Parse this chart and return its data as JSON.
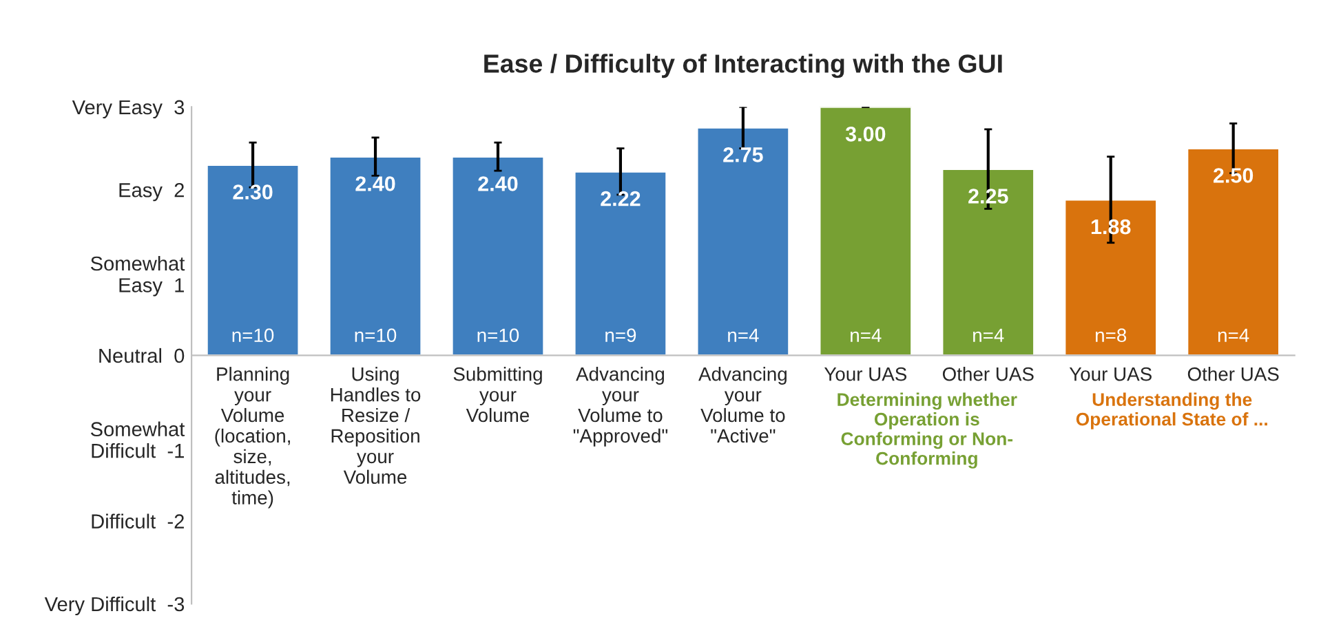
{
  "chart_data": {
    "type": "bar",
    "title": "Ease / Difficulty of Interacting with the GUI",
    "categories": [
      "Planning\nyour\nVolume\n(location,\nsize,\naltitudes,\ntime)",
      "Using\nHandles to\nResize /\nReposition\nyour\nVolume",
      "Submitting\nyour\nVolume",
      "Advancing\nyour\nVolume to\n\"Approved\"",
      "Advancing\nyour\nVolume to\n\"Active\"",
      "Your UAS",
      "Other UAS",
      "Your UAS",
      "Other UAS"
    ],
    "values": [
      2.3,
      2.4,
      2.4,
      2.22,
      2.75,
      3.0,
      2.25,
      1.88,
      2.5
    ],
    "value_labels": [
      "2.30",
      "2.40",
      "2.40",
      "2.22",
      "2.75",
      "3.00",
      "2.25",
      "1.88",
      "2.50"
    ],
    "colors": [
      "#3f7fbf",
      "#3f7fbf",
      "#3f7fbf",
      "#3f7fbf",
      "#3f7fbf",
      "#77a033",
      "#77a033",
      "#d9730d",
      "#d9730d"
    ],
    "errors": [
      0.27,
      0.23,
      0.17,
      0.28,
      0.25,
      0,
      0.48,
      0.52,
      0.3
    ],
    "ylim": [
      -3,
      3
    ],
    "yticks": [
      {
        "value": 3,
        "label": "Very Easy  3"
      },
      {
        "value": 2,
        "label": "Easy  2"
      },
      {
        "value": 1,
        "label": "Somewhat\nEasy  1"
      },
      {
        "value": 0,
        "label": "Neutral  0"
      },
      {
        "value": -1,
        "label": "Somewhat\nDifficult  -1"
      },
      {
        "value": -2,
        "label": "Difficult  -2"
      },
      {
        "value": -3,
        "label": "Very Difficult  -3"
      }
    ],
    "annotations": [
      {
        "text": "n=10",
        "y": 0
      },
      {
        "text": "n=10",
        "y": 0
      },
      {
        "text": "n=10",
        "y": 0
      },
      {
        "text": "n=9",
        "y": 0
      },
      {
        "text": "n=4",
        "y": 0
      },
      {
        "text": "n=4",
        "y": 0
      },
      {
        "text": "n=4",
        "y": 0
      },
      {
        "text": "n=8",
        "y": 0
      },
      {
        "text": "n=4",
        "y": 0
      },
      "Determining whether\nOperation is\nConforming or Non-\nConforming",
      "Understanding the\nOperational State of ..."
    ],
    "grid": false,
    "legend": false
  }
}
